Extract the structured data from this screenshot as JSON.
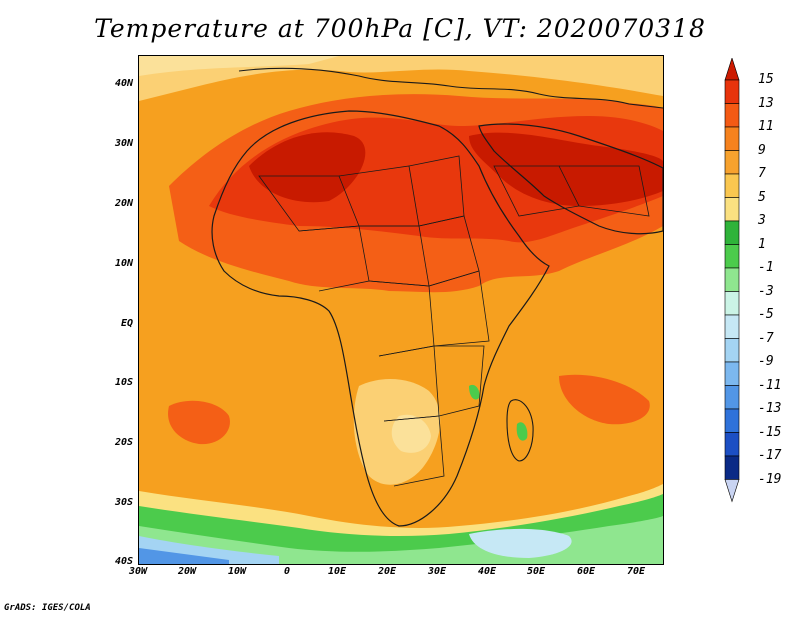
{
  "title": "Temperature at 700hPa [C], VT: 2020070318",
  "credit": "GrADS: IGES/COLA",
  "map": {
    "lon_range": [
      -30,
      75
    ],
    "lat_range": [
      -40,
      45
    ],
    "lat_ticks": [
      "40N",
      "30N",
      "20N",
      "10N",
      "EQ",
      "10S",
      "20S",
      "30S",
      "40S"
    ],
    "lon_ticks": [
      "30W",
      "20W",
      "10W",
      "0",
      "10E",
      "20E",
      "30E",
      "40E",
      "50E",
      "60E",
      "70E"
    ],
    "region": "Africa and Middle East",
    "features": [
      "country-borders",
      "coastlines",
      "temperature-shading"
    ]
  },
  "colorbar": {
    "labels": [
      "15",
      "13",
      "11",
      "9",
      "7",
      "5",
      "3",
      "1",
      "-1",
      "-3",
      "-5",
      "-7",
      "-9",
      "-11",
      "-13",
      "-15",
      "-17",
      "-19"
    ],
    "colors": [
      "#cc1a00",
      "#e8340c",
      "#f45a14",
      "#f6821e",
      "#f7a22e",
      "#fac750",
      "#fbe181",
      "#2fb33a",
      "#4ccb4c",
      "#8fe68f",
      "#cbf4e6",
      "#c6e8f5",
      "#a4d4f3",
      "#7cb8ef",
      "#5296e6",
      "#2f72da",
      "#1c4fc4",
      "#0a2a86",
      "#0c1770"
    ]
  }
}
